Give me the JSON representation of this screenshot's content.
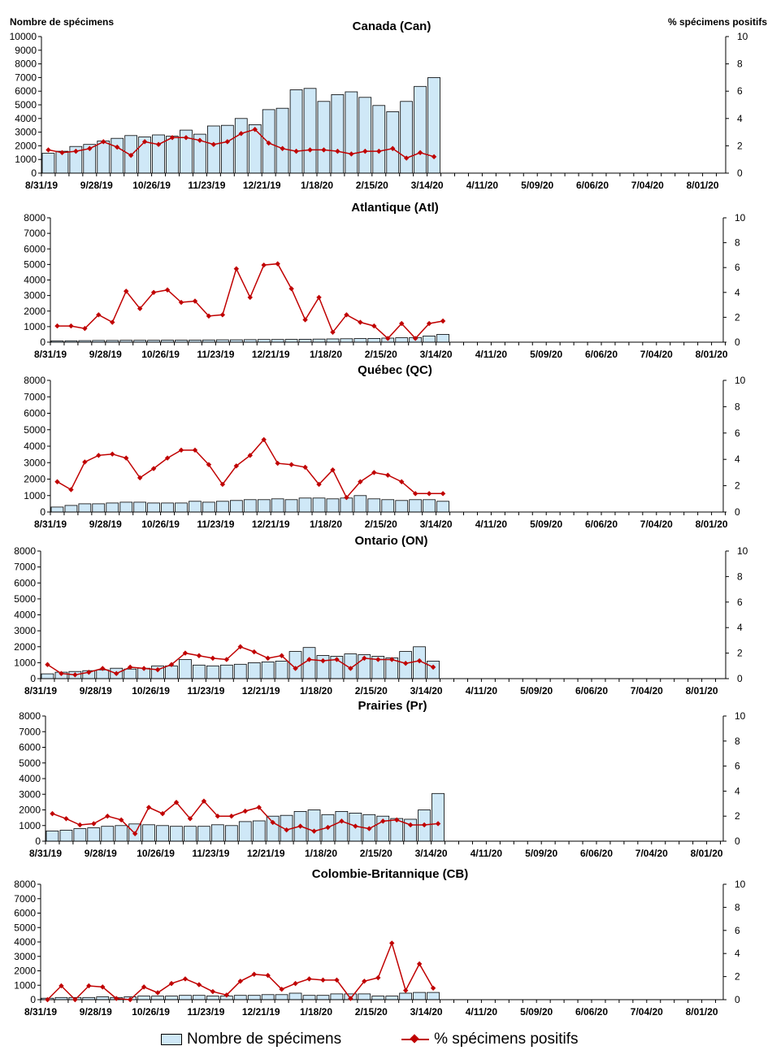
{
  "chart_data": [
    {
      "type": "bar",
      "title": "Canada (Can)",
      "ylabel": "Nombre de spécimens",
      "y2label": "% spécimens positifs",
      "ylim": [
        0,
        10000
      ],
      "y2lim": [
        0,
        10
      ],
      "x_tick_labels": [
        "8/31/19",
        "9/28/19",
        "10/26/19",
        "11/23/19",
        "12/21/19",
        "1/18/20",
        "2/15/20",
        "3/14/20",
        "4/11/20",
        "5/09/20",
        "6/06/20",
        "7/04/20",
        "8/01/20"
      ],
      "series": [
        {
          "name": "Nombre de spécimens",
          "kind": "bar",
          "values": [
            1450,
            1600,
            1950,
            2100,
            2350,
            2550,
            2750,
            2650,
            2800,
            2700,
            3150,
            2850,
            3450,
            3500,
            4000,
            3550,
            4650,
            4750,
            6100,
            6200,
            5250,
            5750,
            5950,
            5550,
            4950,
            4500,
            5250,
            6350,
            7000
          ]
        },
        {
          "name": "% spécimens positifs",
          "kind": "line",
          "values": [
            1.7,
            1.5,
            1.6,
            1.8,
            2.3,
            1.9,
            1.3,
            2.3,
            2.1,
            2.6,
            2.6,
            2.4,
            2.1,
            2.3,
            2.9,
            3.2,
            2.2,
            1.8,
            1.6,
            1.7,
            1.7,
            1.6,
            1.4,
            1.6,
            1.6,
            1.8,
            1.1,
            1.5,
            1.2
          ]
        }
      ]
    },
    {
      "type": "bar",
      "title": "Atlantique (Atl)",
      "ylim": [
        0,
        8000
      ],
      "y2lim": [
        0,
        10
      ],
      "x_tick_labels": [
        "8/31/19",
        "9/28/19",
        "10/26/19",
        "11/23/19",
        "12/21/19",
        "1/18/20",
        "2/15/20",
        "3/14/20",
        "4/11/20",
        "5/09/20",
        "6/06/20",
        "7/04/20",
        "8/01/20"
      ],
      "series": [
        {
          "name": "Nombre de spécimens",
          "kind": "bar",
          "values": [
            80,
            90,
            100,
            110,
            110,
            120,
            120,
            120,
            130,
            130,
            130,
            140,
            150,
            150,
            160,
            170,
            170,
            180,
            190,
            200,
            210,
            220,
            230,
            240,
            260,
            280,
            300,
            400,
            500
          ]
        },
        {
          "name": "% spécimens positifs",
          "kind": "line",
          "values": [
            1.3,
            1.3,
            1.1,
            2.2,
            1.6,
            4.1,
            2.7,
            4.0,
            4.2,
            3.2,
            3.3,
            2.1,
            2.2,
            5.9,
            3.6,
            6.2,
            6.3,
            4.3,
            1.8,
            3.6,
            0.8,
            2.2,
            1.6,
            1.3,
            0.3,
            1.5,
            0.3,
            1.5,
            1.7
          ]
        }
      ]
    },
    {
      "type": "bar",
      "title": "Québec (QC)",
      "ylim": [
        0,
        8000
      ],
      "y2lim": [
        0,
        10
      ],
      "x_tick_labels": [
        "8/31/19",
        "9/28/19",
        "10/26/19",
        "11/23/19",
        "12/21/19",
        "1/18/20",
        "2/15/20",
        "3/14/20",
        "4/11/20",
        "5/09/20",
        "6/06/20",
        "7/04/20",
        "8/01/20"
      ],
      "series": [
        {
          "name": "Nombre de spécimens",
          "kind": "bar",
          "values": [
            300,
            400,
            500,
            500,
            550,
            600,
            600,
            550,
            550,
            550,
            650,
            600,
            650,
            700,
            750,
            750,
            800,
            750,
            850,
            850,
            800,
            850,
            1000,
            800,
            750,
            700,
            750,
            750,
            650
          ]
        },
        {
          "name": "% spécimens positifs",
          "kind": "line",
          "values": [
            2.3,
            1.7,
            3.8,
            4.3,
            4.4,
            4.1,
            2.6,
            3.3,
            4.1,
            4.7,
            4.7,
            3.6,
            2.1,
            3.5,
            4.3,
            5.5,
            3.7,
            3.6,
            3.4,
            2.1,
            3.2,
            1.1,
            2.3,
            3.0,
            2.8,
            2.3,
            1.4,
            1.4,
            1.4
          ]
        }
      ]
    },
    {
      "type": "bar",
      "title": "Ontario (ON)",
      "ylim": [
        0,
        8000
      ],
      "y2lim": [
        0,
        10
      ],
      "x_tick_labels": [
        "8/31/19",
        "9/28/19",
        "10/26/19",
        "11/23/19",
        "12/21/19",
        "1/18/20",
        "2/15/20",
        "3/14/20",
        "4/11/20",
        "5/09/20",
        "6/06/20",
        "7/04/20",
        "8/01/20"
      ],
      "series": [
        {
          "name": "Nombre de spécimens",
          "kind": "bar",
          "values": [
            300,
            400,
            450,
            500,
            550,
            650,
            600,
            650,
            800,
            800,
            1200,
            850,
            800,
            850,
            900,
            1000,
            1050,
            1100,
            1700,
            1950,
            1450,
            1400,
            1550,
            1500,
            1400,
            1300,
            1700,
            2000,
            1100
          ]
        },
        {
          "name": "% spécimens positifs",
          "kind": "line",
          "values": [
            1.1,
            0.4,
            0.3,
            0.5,
            0.8,
            0.4,
            0.9,
            0.8,
            0.7,
            1.1,
            2.0,
            1.8,
            1.6,
            1.5,
            2.5,
            2.1,
            1.6,
            1.8,
            0.8,
            1.5,
            1.4,
            1.5,
            0.8,
            1.6,
            1.5,
            1.5,
            1.2,
            1.4,
            0.9
          ]
        }
      ]
    },
    {
      "type": "bar",
      "title": "Prairies (Pr)",
      "ylim": [
        0,
        8000
      ],
      "y2lim": [
        0,
        10
      ],
      "x_tick_labels": [
        "8/31/19",
        "9/28/19",
        "10/26/19",
        "11/23/19",
        "12/21/19",
        "1/18/20",
        "2/15/20",
        "3/14/20",
        "4/11/20",
        "5/09/20",
        "6/06/20",
        "7/04/20",
        "8/01/20"
      ],
      "series": [
        {
          "name": "Nombre de spécimens",
          "kind": "bar",
          "values": [
            650,
            700,
            800,
            850,
            950,
            1000,
            1100,
            1050,
            1000,
            950,
            950,
            950,
            1050,
            1000,
            1250,
            1300,
            1600,
            1650,
            1900,
            2000,
            1700,
            1900,
            1800,
            1700,
            1600,
            1450,
            1400,
            2000,
            3050
          ]
        },
        {
          "name": "% spécimens positifs",
          "kind": "line",
          "values": [
            2.2,
            1.8,
            1.3,
            1.4,
            2.0,
            1.7,
            0.6,
            2.7,
            2.2,
            3.1,
            1.8,
            3.2,
            2.0,
            2.0,
            2.4,
            2.7,
            1.5,
            0.9,
            1.2,
            0.8,
            1.1,
            1.6,
            1.2,
            1.0,
            1.6,
            1.7,
            1.3,
            1.3,
            1.4
          ]
        }
      ]
    },
    {
      "type": "bar",
      "title": "Colombie-Britannique (CB)",
      "ylim": [
        0,
        8000
      ],
      "y2lim": [
        0,
        10
      ],
      "x_tick_labels": [
        "8/31/19",
        "9/28/19",
        "10/26/19",
        "11/23/19",
        "12/21/19",
        "1/18/20",
        "2/15/20",
        "3/14/20",
        "4/11/20",
        "5/09/20",
        "6/06/20",
        "7/04/20",
        "8/01/20"
      ],
      "series": [
        {
          "name": "Nombre de spécimens",
          "kind": "bar",
          "values": [
            100,
            150,
            150,
            150,
            200,
            150,
            200,
            250,
            250,
            250,
            300,
            300,
            250,
            250,
            300,
            300,
            350,
            350,
            450,
            300,
            300,
            400,
            400,
            400,
            250,
            250,
            450,
            500,
            500
          ]
        },
        {
          "name": "% spécimens positifs",
          "kind": "line",
          "values": [
            0.0,
            1.2,
            0.0,
            1.2,
            1.1,
            0.1,
            0.0,
            1.1,
            0.6,
            1.4,
            1.8,
            1.3,
            0.7,
            0.4,
            1.6,
            2.2,
            2.1,
            0.9,
            1.4,
            1.8,
            1.7,
            1.7,
            0.1,
            1.6,
            1.9,
            4.9,
            0.8,
            3.1,
            1.0
          ]
        }
      ]
    }
  ],
  "legend": {
    "bars_label": "Nombre de spécimens",
    "line_label": "% spécimens positifs"
  },
  "colors": {
    "bar_fill": "#cfe8f7",
    "line": "#c00000"
  }
}
